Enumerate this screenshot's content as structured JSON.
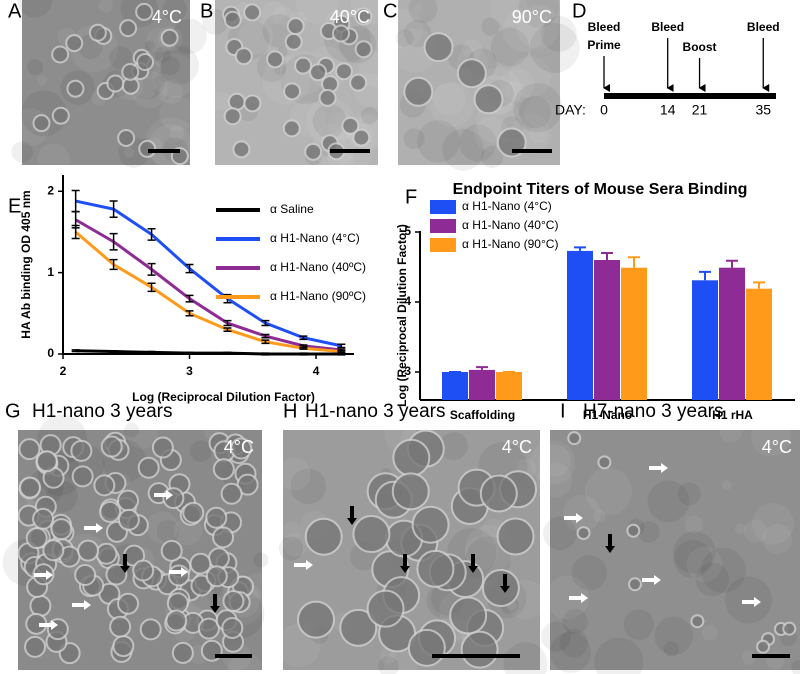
{
  "panels": {
    "labels": [
      "A",
      "B",
      "C",
      "D",
      "E",
      "F",
      "G",
      "H",
      "I"
    ]
  },
  "micrographs": [
    {
      "label": "4°C"
    },
    {
      "label": "40°C"
    },
    {
      "label": "90°C"
    },
    {
      "title": "H1-nano 3 years",
      "label": "4°C"
    },
    {
      "title": "H1-nano 3 years",
      "label": "4°C"
    },
    {
      "title": "H7-nano 3 years",
      "label": "4°C"
    }
  ],
  "timeline": {
    "day_label": "DAY:",
    "events": [
      {
        "day": 0,
        "labels": [
          "Bleed",
          "Prime"
        ]
      },
      {
        "day": 14,
        "labels": [
          "Bleed"
        ]
      },
      {
        "day": 21,
        "labels": [
          "Boost"
        ]
      },
      {
        "day": 35,
        "labels": [
          "Bleed"
        ]
      }
    ]
  },
  "chart_data": [
    {
      "type": "line",
      "xlabel": "Log (Reciprocal Dilution Factor)",
      "ylabel": "HA Ab binding OD 405 nm",
      "x": [
        2.1,
        2.4,
        2.7,
        3.0,
        3.3,
        3.6,
        3.9,
        4.2
      ],
      "xlim": [
        2,
        4.3
      ],
      "xticks": [
        2,
        3,
        4
      ],
      "ylim": [
        0,
        2.2
      ],
      "yticks": [
        0,
        1,
        2
      ],
      "series": [
        {
          "name": "α Saline",
          "color": "#000000",
          "values": [
            0.04,
            0.03,
            0.02,
            0.01,
            0.01,
            0,
            0,
            0
          ],
          "error": [
            0.01,
            0.01,
            0.01,
            0.01,
            0.01,
            0.01,
            0.01,
            0.01
          ]
        },
        {
          "name": "α H1-Nano (4°C)",
          "color": "#1d4ff5",
          "values": [
            1.88,
            1.78,
            1.47,
            1.05,
            0.68,
            0.38,
            0.2,
            0.1
          ],
          "error": [
            0.13,
            0.1,
            0.07,
            0.05,
            0.05,
            0.03,
            0.02,
            0.02
          ]
        },
        {
          "name": "α H1-Nano (40ºC)",
          "color": "#8e2b94",
          "values": [
            1.65,
            1.38,
            1.04,
            0.68,
            0.38,
            0.22,
            0.1,
            0.05
          ],
          "error": [
            0.1,
            0.1,
            0.07,
            0.04,
            0.03,
            0.02,
            0.01,
            0.01
          ]
        },
        {
          "name": "α H1-Nano (90ºC)",
          "color": "#ff9a1a",
          "values": [
            1.5,
            1.1,
            0.82,
            0.5,
            0.3,
            0.15,
            0.07,
            0.03
          ],
          "error": [
            0.08,
            0.06,
            0.05,
            0.03,
            0.02,
            0.02,
            0.01,
            0.01
          ]
        }
      ]
    },
    {
      "type": "bar",
      "title": "Endpoint Titers of Mouse Sera Binding",
      "ylabel": "Log (Reciprocal Dilution Factor)",
      "categories": [
        "Scaffolding",
        "H1-Nano",
        "H1 rHA"
      ],
      "ylim": [
        2.6,
        5.3
      ],
      "yticks": [
        3,
        4,
        5
      ],
      "series": [
        {
          "name": "α H1-Nano (4°C)",
          "color": "#1d4ff5",
          "values": [
            3.0,
            4.73,
            4.31
          ],
          "error": [
            0,
            0.05,
            0.12
          ]
        },
        {
          "name": "α H1-Nano (40°C)",
          "color": "#8e2b94",
          "values": [
            3.03,
            4.6,
            4.49
          ],
          "error": [
            0.04,
            0.1,
            0.1
          ]
        },
        {
          "name": "α H1-Nano (90°C)",
          "color": "#ff9a1a",
          "values": [
            3.0,
            4.49,
            4.19
          ],
          "error": [
            0,
            0.15,
            0.09
          ]
        }
      ]
    }
  ]
}
